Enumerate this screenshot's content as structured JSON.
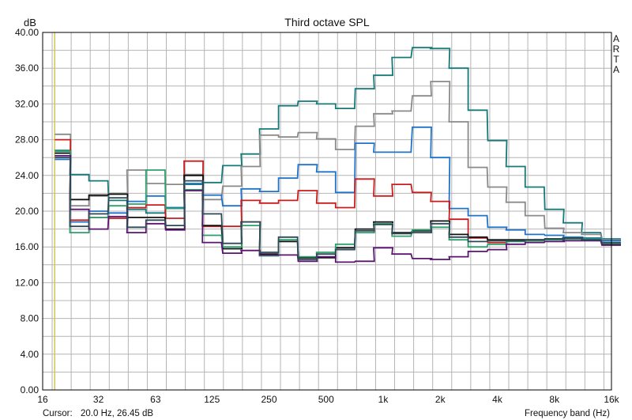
{
  "chart_data": {
    "type": "line",
    "step": true,
    "title": "Third octave SPL",
    "ylabel": "dB",
    "xlabel": "Frequency band (Hz)",
    "side_label": "ARTA",
    "cursor_label": "Cursor:",
    "cursor_value": "20.0 Hz, 26.45 dB",
    "cursor_x_band": 20,
    "cursor_color": "#d8c84a",
    "ylim": [
      0,
      40
    ],
    "y_ticks": [
      "0.00",
      "4.00",
      "8.00",
      "12.00",
      "16.00",
      "20.00",
      "24.00",
      "28.00",
      "32.00",
      "36.00",
      "40.00"
    ],
    "x_tick_labels": [
      {
        "band": 16,
        "label": "16"
      },
      {
        "band": 31.5,
        "label": "32"
      },
      {
        "band": 63,
        "label": "63"
      },
      {
        "band": 125,
        "label": "125"
      },
      {
        "band": 250,
        "label": "250"
      },
      {
        "band": 500,
        "label": "500"
      },
      {
        "band": 1000,
        "label": "1k"
      },
      {
        "band": 2000,
        "label": "2k"
      },
      {
        "band": 4000,
        "label": "4k"
      },
      {
        "band": 8000,
        "label": "8k"
      },
      {
        "band": 16000,
        "label": "16k"
      }
    ],
    "grid": true,
    "bands": [
      20,
      25,
      31.5,
      40,
      50,
      63,
      80,
      100,
      125,
      160,
      200,
      250,
      315,
      400,
      500,
      630,
      800,
      1000,
      1250,
      1600,
      2000,
      2500,
      3150,
      4000,
      5000,
      6300,
      8000,
      10000,
      12500,
      16000
    ],
    "series": [
      {
        "color": "#167a78",
        "values": [
          26.8,
          24.1,
          23.4,
          21.2,
          20.2,
          19.8,
          20.4,
          23.0,
          23.2,
          25.1,
          26.4,
          29.2,
          31.8,
          32.3,
          32.0,
          31.5,
          33.7,
          35.2,
          37.2,
          38.3,
          38.2,
          36.0,
          31.3,
          27.9,
          25.0,
          22.7,
          20.2,
          18.7,
          17.6,
          16.9
        ]
      },
      {
        "color": "#8a8a8a",
        "values": [
          28.6,
          20.6,
          21.7,
          22.0,
          24.6,
          23.1,
          23.0,
          24.1,
          21.3,
          22.8,
          25.0,
          28.5,
          28.3,
          28.8,
          28.1,
          26.9,
          29.5,
          30.9,
          31.2,
          32.9,
          34.5,
          30.0,
          24.9,
          22.7,
          21.0,
          19.5,
          18.1,
          17.6,
          17.4,
          16.8
        ]
      },
      {
        "color": "#1f73c8",
        "values": [
          25.8,
          18.8,
          20.0,
          19.8,
          21.1,
          21.7,
          20.4,
          23.1,
          21.8,
          20.6,
          22.5,
          22.2,
          23.7,
          25.2,
          24.4,
          22.1,
          27.6,
          26.6,
          26.6,
          29.4,
          26.0,
          20.3,
          19.5,
          18.2,
          17.9,
          17.4,
          17.3,
          17.1,
          17.0,
          16.7
        ]
      },
      {
        "color": "#c91d1d",
        "values": [
          28.0,
          19.0,
          19.3,
          19.2,
          20.4,
          20.7,
          19.2,
          25.6,
          18.3,
          18.3,
          21.2,
          20.9,
          21.2,
          22.3,
          20.9,
          20.4,
          23.6,
          21.7,
          23.0,
          22.1,
          21.1,
          19.1,
          17.0,
          16.5,
          16.7,
          16.7,
          16.9,
          17.0,
          16.9,
          16.2
        ]
      },
      {
        "color": "#111111",
        "values": [
          26.5,
          21.3,
          21.8,
          21.9,
          19.3,
          19.3,
          18.0,
          24.0,
          18.4,
          15.8,
          18.8,
          15.2,
          16.6,
          14.8,
          14.8,
          15.9,
          18.0,
          18.8,
          17.6,
          17.8,
          18.9,
          17.4,
          17.1,
          16.8,
          16.8,
          16.8,
          16.9,
          16.9,
          16.9,
          16.3
        ]
      },
      {
        "color": "#2ba06a",
        "values": [
          26.7,
          17.6,
          19.3,
          20.6,
          20.8,
          24.6,
          20.3,
          22.4,
          17.3,
          16.0,
          18.4,
          15.0,
          16.8,
          14.9,
          15.4,
          16.3,
          17.6,
          18.6,
          17.2,
          17.9,
          18.2,
          16.8,
          16.0,
          16.3,
          16.6,
          16.7,
          16.8,
          16.9,
          16.9,
          16.4
        ]
      },
      {
        "color": "#5a1470",
        "values": [
          26.2,
          20.2,
          18.0,
          19.4,
          17.6,
          18.6,
          17.9,
          22.3,
          16.5,
          15.3,
          15.6,
          15.1,
          15.1,
          14.4,
          14.9,
          14.3,
          14.4,
          15.9,
          15.2,
          14.7,
          14.6,
          14.9,
          15.5,
          15.7,
          16.3,
          16.5,
          16.6,
          16.7,
          16.7,
          16.2
        ]
      },
      {
        "color": "#2f4858",
        "values": [
          26.0,
          18.3,
          19.7,
          21.5,
          18.2,
          19.0,
          18.4,
          23.4,
          19.7,
          16.4,
          18.8,
          15.4,
          17.1,
          14.6,
          15.2,
          15.7,
          17.8,
          18.5,
          17.5,
          17.6,
          18.6,
          17.1,
          16.6,
          16.7,
          16.7,
          16.8,
          16.9,
          17.0,
          16.8,
          16.5
        ]
      }
    ]
  }
}
